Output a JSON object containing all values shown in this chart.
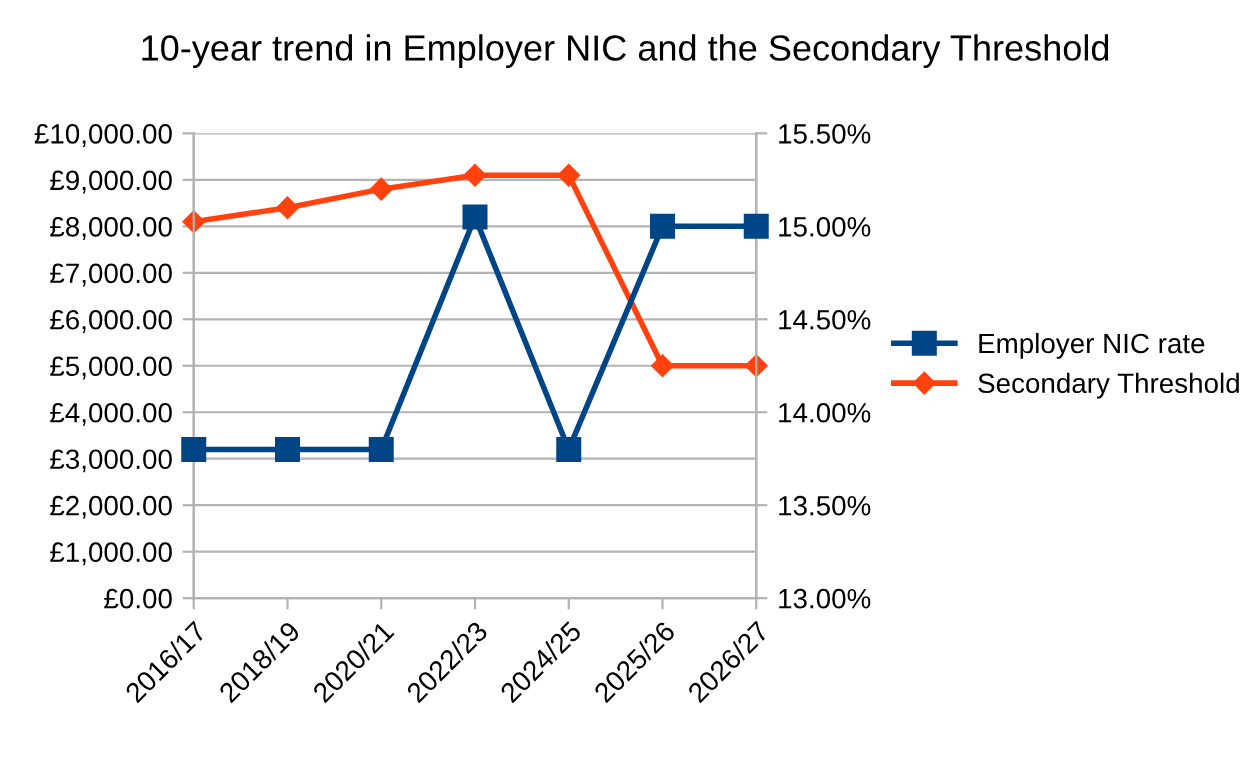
{
  "chart_data": {
    "type": "line",
    "title": "10-year trend in Employer NIC and the Secondary Threshold",
    "categories": [
      "2016/17",
      "2018/19",
      "2020/21",
      "2022/23",
      "2024/25",
      "2025/26",
      "2026/27"
    ],
    "series": [
      {
        "name": "Employer NIC rate",
        "color": "#004586",
        "axis": "y2",
        "marker": "square",
        "values": [
          13.8,
          13.8,
          13.8,
          15.05,
          13.8,
          15.0,
          15.0
        ]
      },
      {
        "name": "Secondary Threshold",
        "color": "#ff420e",
        "axis": "y",
        "marker": "diamond",
        "values": [
          8100,
          8400,
          8800,
          9100,
          9100,
          5000,
          5000
        ]
      }
    ],
    "ylim": [
      0,
      10000
    ],
    "yticks": [
      {
        "value": 0,
        "label": "£0.00"
      },
      {
        "value": 1000,
        "label": "£1,000.00"
      },
      {
        "value": 2000,
        "label": "£2,000.00"
      },
      {
        "value": 3000,
        "label": "£3,000.00"
      },
      {
        "value": 4000,
        "label": "£4,000.00"
      },
      {
        "value": 5000,
        "label": "£5,000.00"
      },
      {
        "value": 6000,
        "label": "£6,000.00"
      },
      {
        "value": 7000,
        "label": "£7,000.00"
      },
      {
        "value": 8000,
        "label": "£8,000.00"
      },
      {
        "value": 9000,
        "label": "£9,000.00"
      },
      {
        "value": 10000,
        "label": "£10,000.00"
      }
    ],
    "y2lim": [
      13,
      15.5
    ],
    "y2ticks": [
      {
        "value": 13,
        "label": "13.00%"
      },
      {
        "value": 13.5,
        "label": "13.50%"
      },
      {
        "value": 14,
        "label": "14.00%"
      },
      {
        "value": 14.5,
        "label": "14.50%"
      },
      {
        "value": 15,
        "label": "15.00%"
      },
      {
        "value": 15.5,
        "label": "15.50%"
      }
    ],
    "grid": "y",
    "legend": "right",
    "line_style": "solid"
  }
}
